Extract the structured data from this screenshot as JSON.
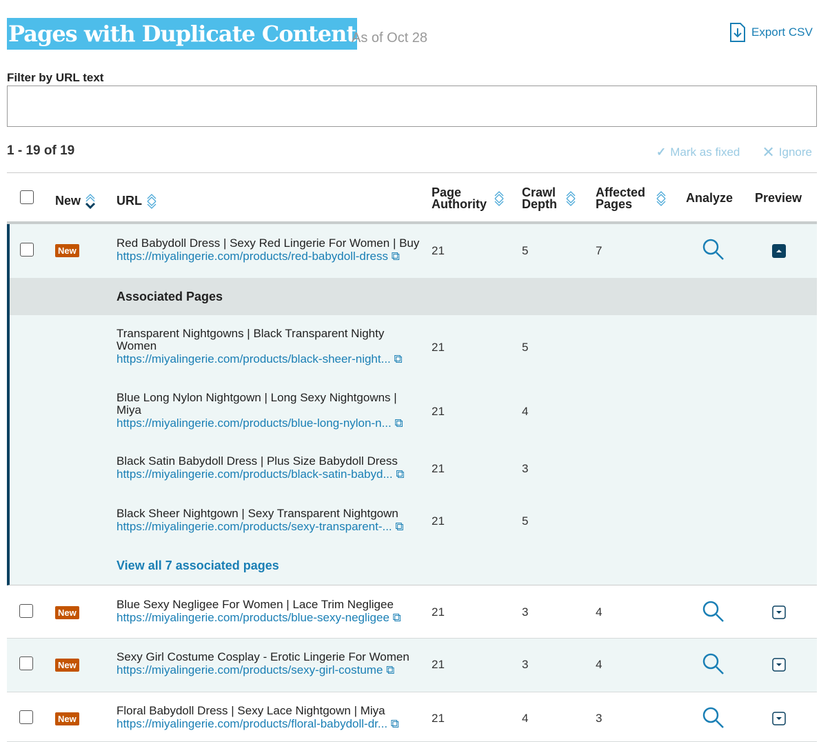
{
  "header": {
    "title": "Pages with Duplicate Content",
    "as_of": "As of Oct 28",
    "export_label": "Export CSV"
  },
  "filter": {
    "label": "Filter by URL text",
    "value": "",
    "placeholder": ""
  },
  "pagination": {
    "range": "1 - 19 of 19"
  },
  "actions": {
    "mark_fixed": "Mark as fixed",
    "ignore": "Ignore"
  },
  "columns": {
    "new": "New",
    "url": "URL",
    "pa1": "Page",
    "pa2": "Authority",
    "cd1": "Crawl",
    "cd2": "Depth",
    "ap1": "Affected",
    "ap2": "Pages",
    "analyze": "Analyze",
    "preview": "Preview"
  },
  "badge": "New",
  "colors": {
    "accent": "#1a7fb5",
    "badge": "#c35400",
    "title_bg": "#4dbdea",
    "expanded_border": "#0a4160"
  },
  "expanded_row": {
    "title": "Red Babydoll Dress | Sexy Red Lingerie For Women | Buy",
    "url": "https://miyalingerie.com/products/red-babydoll-dress",
    "pa": "21",
    "cd": "5",
    "ap": "7"
  },
  "associated": {
    "heading": "Associated Pages",
    "view_all": "View all 7 associated pages",
    "items": [
      {
        "title": "Transparent Nightgowns | Black Transparent Nighty Women",
        "url": "https://miyalingerie.com/products/black-sheer-night...",
        "pa": "21",
        "cd": "5"
      },
      {
        "title": "Blue Long Nylon Nightgown | Long Sexy Nightgowns | Miya",
        "url": "https://miyalingerie.com/products/blue-long-nylon-n...",
        "pa": "21",
        "cd": "4"
      },
      {
        "title": "Black Satin Babydoll Dress | Plus Size Babydoll Dress",
        "url": "https://miyalingerie.com/products/black-satin-babyd...",
        "pa": "21",
        "cd": "3"
      },
      {
        "title": "Black Sheer Nightgown | Sexy Transparent Nightgown",
        "url": "https://miyalingerie.com/products/sexy-transparent-...",
        "pa": "21",
        "cd": "5"
      }
    ]
  },
  "rows": [
    {
      "title": "Blue Sexy Negligee For Women | Lace Trim Negligee",
      "url": "https://miyalingerie.com/products/blue-sexy-negligee",
      "pa": "21",
      "cd": "3",
      "ap": "4"
    },
    {
      "title": "Sexy Girl Costume Cosplay - Erotic Lingerie For Women",
      "url": "https://miyalingerie.com/products/sexy-girl-costume",
      "pa": "21",
      "cd": "3",
      "ap": "4"
    },
    {
      "title": "Floral Babydoll Dress | Sexy Lace Nightgown | Miya",
      "url": "https://miyalingerie.com/products/floral-babydoll-dr...",
      "pa": "21",
      "cd": "4",
      "ap": "3"
    }
  ]
}
